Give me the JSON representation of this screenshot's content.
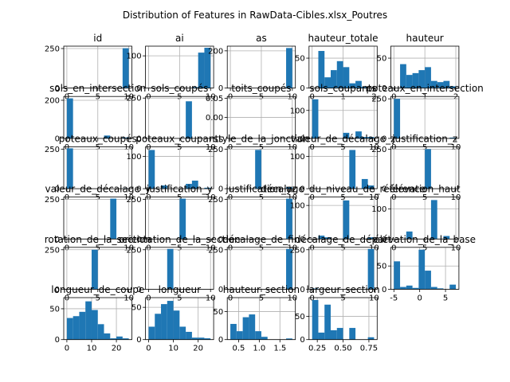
{
  "title": "Distribution of Features in RawData-Cibles.xlsx_Poutres",
  "chart_data": [
    {
      "type": "histogram",
      "title": "id",
      "bins": [
        0,
        1,
        2,
        3,
        4,
        5,
        6,
        7,
        8,
        9,
        10
      ],
      "counts": [
        0,
        0,
        0,
        0,
        0,
        0,
        0,
        0,
        0,
        252
      ],
      "color": "#1f77b4",
      "xlim": [
        -0.5,
        10.5
      ],
      "ylim": [
        0,
        265
      ],
      "xticks": [
        0,
        5,
        10
      ],
      "yticks": [
        0,
        250
      ],
      "grid": true
    },
    {
      "type": "histogram",
      "title": "ai",
      "bins": [
        0,
        1,
        2,
        3,
        4,
        5,
        6,
        7,
        8,
        9,
        10
      ],
      "counts": [
        0,
        0,
        0,
        0,
        0,
        0,
        0,
        3,
        110,
        125
      ],
      "color": "#1f77b4",
      "xlim": [
        -0.5,
        10.5
      ],
      "ylim": [
        0,
        130
      ],
      "xticks": [
        0,
        5,
        10
      ],
      "yticks": [
        0,
        100
      ],
      "grid": true
    },
    {
      "type": "histogram",
      "title": "as",
      "bins": [
        0,
        1,
        2,
        3,
        4,
        5,
        6,
        7,
        8,
        9,
        10
      ],
      "counts": [
        0,
        0,
        0,
        0,
        0,
        0,
        0,
        0,
        0,
        215
      ],
      "color": "#1f77b4",
      "xlim": [
        -0.5,
        10.5
      ],
      "ylim": [
        0,
        225
      ],
      "xticks": [
        0,
        5,
        10
      ],
      "yticks": [
        0,
        200
      ],
      "grid": true
    },
    {
      "type": "histogram",
      "title": "hauteur_totale",
      "bins": [
        0,
        0.2,
        0.4,
        0.6,
        0.8,
        1,
        1.2,
        1.4,
        1.6,
        1.8,
        2
      ],
      "counts": [
        0,
        62,
        18,
        30,
        45,
        35,
        8,
        12,
        2,
        0
      ],
      "color": "#1f77b4",
      "xlim": [
        -0.1,
        2.1
      ],
      "ylim": [
        0,
        70
      ],
      "xticks": [
        0,
        1,
        2
      ],
      "yticks": [
        0,
        50
      ],
      "grid": true
    },
    {
      "type": "histogram",
      "title": "hauteur",
      "bins": [
        0,
        0.2,
        0.4,
        0.6,
        0.8,
        1,
        1.2,
        1.4,
        1.6,
        1.8,
        2
      ],
      "counts": [
        0,
        40,
        22,
        25,
        30,
        35,
        12,
        10,
        12,
        3
      ],
      "color": "#1f77b4",
      "xlim": [
        -0.1,
        2.1
      ],
      "ylim": [
        0,
        70
      ],
      "xticks": [
        0,
        1,
        2
      ],
      "yticks": [
        0,
        50
      ],
      "grid": true
    },
    {
      "type": "histogram",
      "title": "sols_en_intersection",
      "bins": [
        0,
        1,
        2,
        3,
        4,
        5,
        6,
        7,
        8,
        9,
        10
      ],
      "counts": [
        210,
        0,
        0,
        0,
        0,
        0,
        15,
        0,
        0,
        5
      ],
      "color": "#1f77b4",
      "xlim": [
        -0.5,
        10.5
      ],
      "ylim": [
        0,
        220
      ],
      "xticks": [
        0,
        5,
        10
      ],
      "yticks": [
        0,
        200
      ],
      "grid": true
    },
    {
      "type": "histogram",
      "title": "sols_coupés",
      "bins": [
        0,
        1,
        2,
        3,
        4,
        5,
        6,
        7,
        8,
        9,
        10
      ],
      "counts": [
        0,
        0,
        0,
        0,
        0,
        0,
        230,
        0,
        0,
        0
      ],
      "color": "#1f77b4",
      "xlim": [
        -0.5,
        10.5
      ],
      "ylim": [
        0,
        260
      ],
      "xticks": [
        0,
        5,
        10
      ],
      "yticks": [
        0,
        250
      ],
      "grid": true
    },
    {
      "type": "histogram",
      "title": "toits_coupés",
      "bins": [
        0,
        1,
        2,
        3,
        4,
        5,
        6,
        7,
        8,
        9,
        10
      ],
      "counts": [
        0,
        0,
        0,
        0,
        0,
        0,
        0,
        0,
        0,
        0
      ],
      "color": "#1f77b4",
      "xlim": [
        -0.5,
        10.5
      ],
      "ylim": [
        -0.055,
        0.055
      ],
      "xticks": [
        0,
        5,
        10
      ],
      "yticks": [
        {
          "value": 0,
          "label": "0.00"
        },
        0.05
      ],
      "grid": true
    },
    {
      "type": "histogram",
      "title": "sols_coupants",
      "bins": [
        0,
        1,
        2,
        3,
        4,
        5,
        6,
        7,
        8,
        9,
        10
      ],
      "counts": [
        140,
        0,
        0,
        0,
        0,
        20,
        0,
        25,
        5,
        5
      ],
      "color": "#1f77b4",
      "xlim": [
        -0.5,
        10.5
      ],
      "ylim": [
        0,
        150
      ],
      "xticks": [
        0,
        5,
        10
      ],
      "yticks": [
        0,
        100
      ],
      "grid": true
    },
    {
      "type": "histogram",
      "title": "poteaux_en_intersection",
      "bins": [
        0,
        1,
        2,
        3,
        4,
        5,
        6,
        7,
        8,
        9,
        10
      ],
      "counts": [
        250,
        0,
        0,
        0,
        0,
        0,
        0,
        0,
        0,
        5
      ],
      "color": "#1f77b4",
      "xlim": [
        -0.5,
        10.5
      ],
      "ylim": [
        0,
        265
      ],
      "xticks": [
        0,
        5,
        10
      ],
      "yticks": [
        0,
        250
      ],
      "grid": true
    },
    {
      "type": "histogram",
      "title": "poteaux_coupés",
      "bins": [
        0,
        1,
        2,
        3,
        4,
        5,
        6,
        7,
        8,
        9,
        10
      ],
      "counts": [
        255,
        0,
        0,
        0,
        0,
        0,
        0,
        0,
        0,
        2
      ],
      "color": "#1f77b4",
      "xlim": [
        -0.5,
        10.5
      ],
      "ylim": [
        0,
        265
      ],
      "xticks": [
        0,
        5,
        10
      ],
      "yticks": [
        0,
        250
      ],
      "grid": true
    },
    {
      "type": "histogram",
      "title": "poteaux_coupants",
      "bins": [
        0,
        1,
        2,
        3,
        4,
        5,
        6,
        7,
        8,
        9,
        10
      ],
      "counts": [
        120,
        0,
        10,
        0,
        0,
        0,
        15,
        25,
        0,
        3
      ],
      "color": "#1f77b4",
      "xlim": [
        -0.5,
        10.5
      ],
      "ylim": [
        0,
        130
      ],
      "xticks": [
        0,
        5,
        10
      ],
      "yticks": [
        0,
        100
      ],
      "grid": true
    },
    {
      "type": "histogram",
      "title": "style_de_la_jonction",
      "bins": [
        0,
        1,
        2,
        3,
        4,
        5,
        6,
        7,
        8,
        9,
        10
      ],
      "counts": [
        0,
        0,
        0,
        0,
        245,
        0,
        0,
        0,
        0,
        10
      ],
      "color": "#1f77b4",
      "xlim": [
        -0.5,
        10.5
      ],
      "ylim": [
        0,
        265
      ],
      "xticks": [
        0,
        5,
        10
      ],
      "yticks": [
        0,
        250
      ],
      "grid": true
    },
    {
      "type": "histogram",
      "title": "valeur_de_décalage_z",
      "bins": [
        0,
        1,
        2,
        3,
        4,
        5,
        6,
        7,
        8,
        9,
        10
      ],
      "counts": [
        0,
        0,
        0,
        0,
        0,
        0,
        120,
        0,
        30,
        10
      ],
      "color": "#1f77b4",
      "xlim": [
        -0.5,
        10.5
      ],
      "ylim": [
        0,
        130
      ],
      "xticks": [
        0,
        5,
        10
      ],
      "yticks": [
        0,
        100
      ],
      "grid": true
    },
    {
      "type": "histogram",
      "title": "justification_z",
      "bins": [
        0,
        1,
        2,
        3,
        4,
        5,
        6,
        7,
        8,
        9,
        10
      ],
      "counts": [
        0,
        0,
        0,
        0,
        0,
        250,
        0,
        0,
        0,
        0
      ],
      "color": "#1f77b4",
      "xlim": [
        -0.5,
        10.5
      ],
      "ylim": [
        0,
        265
      ],
      "xticks": [
        0,
        5,
        10
      ],
      "yticks": [
        0,
        250
      ],
      "grid": true
    },
    {
      "type": "histogram",
      "title": "valeur_de_décalage_y",
      "bins": [
        0,
        1,
        2,
        3,
        4,
        5,
        6,
        7,
        8,
        9,
        10
      ],
      "counts": [
        0,
        0,
        0,
        0,
        0,
        0,
        0,
        255,
        0,
        0
      ],
      "color": "#1f77b4",
      "xlim": [
        -0.5,
        10.5
      ],
      "ylim": [
        0,
        265
      ],
      "xticks": [
        0,
        5,
        10
      ],
      "yticks": [
        0,
        250
      ],
      "grid": true
    },
    {
      "type": "histogram",
      "title": "justification_y",
      "bins": [
        0,
        1,
        2,
        3,
        4,
        5,
        6,
        7,
        8,
        9,
        10
      ],
      "counts": [
        0,
        0,
        0,
        0,
        0,
        255,
        0,
        0,
        0,
        0
      ],
      "color": "#1f77b4",
      "xlim": [
        -0.5,
        10.5
      ],
      "ylim": [
        0,
        265
      ],
      "xticks": [
        0,
        5,
        10
      ],
      "yticks": [
        0,
        250
      ],
      "grid": true
    },
    {
      "type": "histogram",
      "title": "justification_yz",
      "bins": [
        0,
        1,
        2,
        3,
        4,
        5,
        6,
        7,
        8,
        9,
        10
      ],
      "counts": [
        0,
        0,
        0,
        0,
        0,
        0,
        0,
        0,
        0,
        255
      ],
      "color": "#1f77b4",
      "xlim": [
        -0.5,
        10.5
      ],
      "ylim": [
        0,
        265
      ],
      "xticks": [
        0,
        5,
        10
      ],
      "yticks": [
        0,
        250
      ],
      "grid": true
    },
    {
      "type": "histogram",
      "title": "décalage_du_niveau_de_référence",
      "bins": [
        0,
        1,
        2,
        3,
        4,
        5,
        6,
        7,
        8,
        9,
        10
      ],
      "counts": [
        0,
        10,
        5,
        0,
        0,
        115,
        0,
        0,
        0,
        5
      ],
      "color": "#1f77b4",
      "xlim": [
        -0.5,
        10.5
      ],
      "ylim": [
        0,
        125
      ],
      "xticks": [
        0,
        5,
        10
      ],
      "yticks": [
        0,
        100
      ],
      "grid": true
    },
    {
      "type": "histogram",
      "title": "élévation_haut",
      "bins": [
        0,
        1,
        2,
        3,
        4,
        5,
        6,
        7,
        8,
        9,
        10
      ],
      "counts": [
        0,
        0,
        25,
        0,
        0,
        0,
        130,
        0,
        10,
        0
      ],
      "color": "#1f77b4",
      "xlim": [
        -0.5,
        10.5
      ],
      "ylim": [
        0,
        140
      ],
      "xticks": [
        0,
        5,
        10
      ],
      "yticks": [
        0,
        100
      ],
      "grid": true
    },
    {
      "type": "histogram",
      "title": "rotation_de_la_section",
      "bins": [
        0,
        1,
        2,
        3,
        4,
        5,
        6,
        7,
        8,
        9,
        10
      ],
      "counts": [
        0,
        0,
        0,
        0,
        250,
        0,
        0,
        0,
        0,
        0
      ],
      "color": "#1f77b4",
      "xlim": [
        -0.5,
        10.5
      ],
      "ylim": [
        0,
        265
      ],
      "xticks": [
        0,
        5,
        10
      ],
      "yticks": [
        0,
        250
      ],
      "grid": true
    },
    {
      "type": "histogram",
      "title": "orientation_de_la_section",
      "bins": [
        0,
        1,
        2,
        3,
        4,
        5,
        6,
        7,
        8,
        9,
        10
      ],
      "counts": [
        0,
        0,
        0,
        255,
        0,
        0,
        0,
        0,
        0,
        0
      ],
      "color": "#1f77b4",
      "xlim": [
        -0.5,
        10.5
      ],
      "ylim": [
        0,
        265
      ],
      "xticks": [
        0,
        5,
        10
      ],
      "yticks": [
        0,
        250
      ],
      "grid": true
    },
    {
      "type": "histogram",
      "title": "décalage_de_fin",
      "bins": [
        0,
        1,
        2,
        3,
        4,
        5,
        6,
        7,
        8,
        9,
        10
      ],
      "counts": [
        0,
        0,
        0,
        0,
        0,
        0,
        0,
        0,
        0,
        255
      ],
      "color": "#1f77b4",
      "xlim": [
        -0.5,
        10.5
      ],
      "ylim": [
        0,
        265
      ],
      "xticks": [
        0,
        5,
        10
      ],
      "yticks": [
        0,
        250
      ],
      "grid": true
    },
    {
      "type": "histogram",
      "title": "décalage_de_départ",
      "bins": [
        0,
        1,
        2,
        3,
        4,
        5,
        6,
        7,
        8,
        9,
        10
      ],
      "counts": [
        5,
        0,
        0,
        0,
        0,
        0,
        0,
        0,
        0,
        255
      ],
      "color": "#1f77b4",
      "xlim": [
        -0.5,
        10.5
      ],
      "ylim": [
        0,
        265
      ],
      "xticks": [
        0,
        5,
        10
      ],
      "yticks": [
        0,
        250
      ],
      "grid": true
    },
    {
      "type": "histogram",
      "title": "élévation_de_la_base",
      "bins": [
        -5,
        -3.8,
        -2.6,
        -1.4,
        -0.2,
        1,
        2.2,
        3.4,
        4.6,
        5.8,
        7
      ],
      "counts": [
        60,
        5,
        8,
        3,
        85,
        40,
        5,
        2,
        0,
        10
      ],
      "color": "#1f77b4",
      "xlim": [
        -5.6,
        7.6
      ],
      "ylim": [
        0,
        90
      ],
      "xticks": [
        -5,
        0,
        5
      ],
      "yticks": [
        0,
        50
      ],
      "grid": true
    },
    {
      "type": "histogram",
      "title": "longueur_de_coupe",
      "bins": [
        0,
        2.5,
        5,
        7.5,
        10,
        12.5,
        15,
        17.5,
        20,
        22.5,
        25
      ],
      "counts": [
        35,
        38,
        45,
        62,
        48,
        25,
        10,
        2,
        5,
        2
      ],
      "color": "#1f77b4",
      "xlim": [
        -1.25,
        26.25
      ],
      "ylim": [
        0,
        68
      ],
      "xticks": [
        0,
        10,
        20
      ],
      "yticks": [
        0,
        50
      ],
      "grid": true
    },
    {
      "type": "histogram",
      "title": "longueur",
      "bins": [
        0,
        2.5,
        5,
        7.5,
        10,
        12.5,
        15,
        17.5,
        20,
        22.5,
        25
      ],
      "counts": [
        20,
        40,
        55,
        60,
        45,
        20,
        12,
        3,
        3,
        2
      ],
      "color": "#1f77b4",
      "xlim": [
        -1.25,
        26.25
      ],
      "ylim": [
        0,
        65
      ],
      "xticks": [
        0,
        10,
        20
      ],
      "yticks": [
        0,
        50
      ],
      "grid": true
    },
    {
      "type": "histogram",
      "title": "hauteur_section",
      "bins": [
        0.3,
        0.45,
        0.6,
        0.75,
        0.9,
        1.05,
        1.2,
        1.35,
        1.5,
        1.65,
        1.8
      ],
      "counts": [
        28,
        15,
        40,
        45,
        15,
        5,
        0,
        0,
        0,
        2
      ],
      "color": "#1f77b4",
      "xlim": [
        0.225,
        1.875
      ],
      "ylim": [
        0,
        75
      ],
      "xticks": [
        0.5,
        {
          "value": 1,
          "label": "1.0"
        },
        1.5
      ],
      "yticks": [
        0,
        50
      ],
      "grid": true
    },
    {
      "type": "histogram",
      "title": "largeur_section",
      "bins": [
        0.2,
        0.26,
        0.32,
        0.38,
        0.44,
        0.5,
        0.56,
        0.62,
        0.68,
        0.74,
        0.8
      ],
      "counts": [
        85,
        15,
        75,
        20,
        25,
        0,
        25,
        0,
        0,
        5
      ],
      "color": "#1f77b4",
      "xlim": [
        0.17,
        0.83
      ],
      "ylim": [
        0,
        90
      ],
      "xticks": [
        0.25,
        {
          "value": 0.5,
          "label": "0.50"
        },
        0.75
      ],
      "yticks": [
        0,
        50
      ],
      "grid": true
    }
  ]
}
